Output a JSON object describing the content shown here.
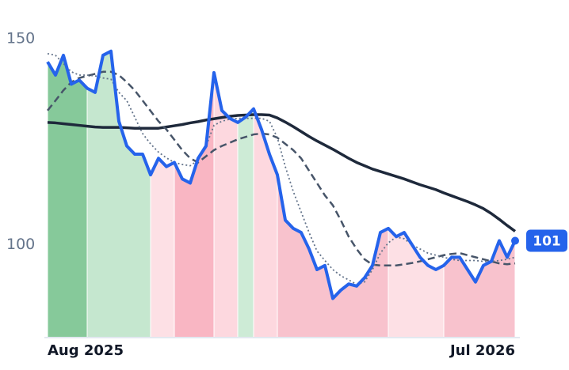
{
  "chart_data": {
    "type": "line",
    "categories": [
      "Aug 2025",
      null,
      null,
      null,
      null,
      null,
      null,
      null,
      null,
      null,
      null,
      null,
      null,
      null,
      null,
      null,
      null,
      null,
      null,
      null,
      null,
      null,
      null,
      null,
      null,
      null,
      null,
      null,
      null,
      null,
      null,
      null,
      null,
      null,
      null,
      null,
      null,
      null,
      null,
      null,
      null,
      null,
      null,
      null,
      null,
      null,
      null,
      null,
      null,
      null,
      null,
      null,
      null,
      null,
      null,
      null,
      null,
      null,
      null,
      "Jul 2026"
    ],
    "ylim": [
      77.5,
      157.5
    ],
    "yticks": [
      100,
      150
    ],
    "series": [
      {
        "color": "#1e293b",
        "style": "solid",
        "width": 3.5,
        "values": [
          129.7,
          129.6,
          129.4,
          129.2,
          129,
          128.8,
          128.6,
          128.5,
          128.5,
          128.5,
          128.4,
          128.3,
          128.3,
          128.3,
          128.3,
          128.6,
          128.9,
          129.2,
          129.6,
          129.9,
          130.3,
          130.6,
          130.9,
          131.2,
          131.4,
          131.5,
          131.6,
          131.6,
          131.5,
          130.8,
          129.8,
          128.7,
          127.5,
          126.3,
          125.2,
          124.2,
          123.2,
          122.1,
          121,
          120,
          119.2,
          118.4,
          117.8,
          117.2,
          116.6,
          116,
          115.3,
          114.6,
          114,
          113.4,
          112.6,
          111.9,
          111.2,
          110.5,
          109.7,
          108.8,
          107.6,
          106.2,
          104.7,
          103.3
        ]
      },
      {
        "color": "#475569",
        "style": "dashed",
        "width": 2.5,
        "values": [
          132.6,
          135,
          137.5,
          139.5,
          140.5,
          141,
          141.5,
          142,
          142,
          141.2,
          139.5,
          137.5,
          135,
          132.5,
          130,
          128,
          125.5,
          123,
          121,
          120,
          121.5,
          123,
          124,
          124.8,
          125.6,
          126.2,
          126.8,
          127,
          126.8,
          126,
          124.5,
          123,
          121,
          118,
          115,
          112,
          109.6,
          106,
          102,
          99,
          96.5,
          95.2,
          95,
          95,
          95,
          95.3,
          95.6,
          96,
          96.5,
          97,
          97.5,
          97.8,
          98,
          97.5,
          97,
          96.5,
          96,
          95.5,
          95.3,
          95.5
        ]
      },
      {
        "color": "#64748b",
        "style": "dotted",
        "width": 1.8,
        "values": [
          146.4,
          146,
          144,
          142,
          141.2,
          141.2,
          141,
          140.5,
          140.2,
          137,
          135,
          131,
          127,
          124.5,
          122.5,
          121.1,
          120,
          119.5,
          119.2,
          120.5,
          124,
          129,
          130,
          130.5,
          130.7,
          130.7,
          130.7,
          130.7,
          130,
          126,
          119,
          113,
          108,
          103,
          98.5,
          96.2,
          94,
          92.5,
          91.5,
          90.4,
          91,
          94,
          98,
          100.5,
          101.9,
          101.5,
          100,
          99,
          98,
          97.5,
          97,
          96.5,
          96.2,
          96.2,
          96.2,
          96,
          96,
          96.2,
          96.5,
          97
        ]
      },
      {
        "color": "#2563eb",
        "style": "solid",
        "width": 4,
        "values": [
          144.4,
          141.2,
          146,
          139,
          140,
          138,
          137,
          146,
          147,
          130,
          124,
          122,
          122,
          117,
          121,
          119,
          120,
          116,
          115,
          121,
          124,
          141.8,
          132.6,
          130.7,
          129.7,
          131,
          133,
          128,
          122,
          117,
          106,
          104,
          103,
          99,
          94,
          95,
          87,
          89,
          90.5,
          90,
          92,
          95,
          103,
          104,
          102,
          103,
          100,
          97,
          95,
          94,
          95,
          97,
          97,
          94,
          91,
          95,
          96,
          101,
          97,
          101
        ]
      }
    ],
    "regions": [
      {
        "from": 0,
        "to": 5,
        "color": "#86c99a"
      },
      {
        "from": 5,
        "to": 13,
        "color": "#c5e7cf"
      },
      {
        "from": 13,
        "to": 16,
        "color": "#fde0e5"
      },
      {
        "from": 16,
        "to": 21,
        "color": "#f9b6c3"
      },
      {
        "from": 21,
        "to": 24,
        "color": "#fdd8df"
      },
      {
        "from": 24,
        "to": 26,
        "color": "#cdebd6"
      },
      {
        "from": 26,
        "to": 29,
        "color": "#fdd8df"
      },
      {
        "from": 29,
        "to": 43,
        "color": "#f8c2cd"
      },
      {
        "from": 43,
        "to": 50,
        "color": "#fde0e5"
      },
      {
        "from": 50,
        "to": 59,
        "color": "#f8c2cd"
      }
    ]
  }
}
